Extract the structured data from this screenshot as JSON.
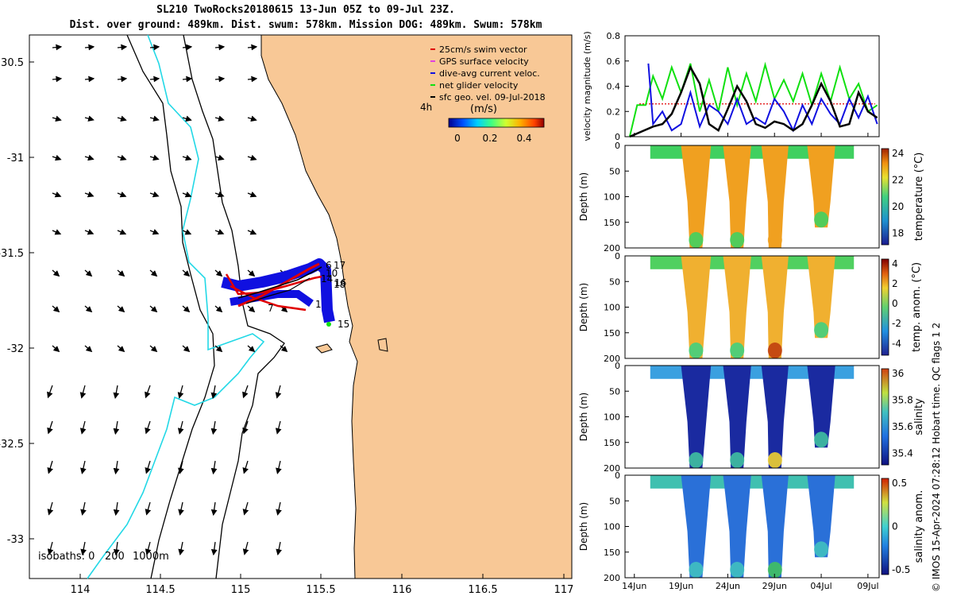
{
  "title_line1": "SL210 TwoRocks20180615 13-Jun 05Z to 09-Jul 23Z.",
  "title_line2": "Dist. over ground: 489km. Dist. swum: 578km. Mission DOG: 489km. Swum: 578km",
  "colors": {
    "land": "#f8c896",
    "ocean": "#ffffff",
    "isobath_200": "#000000",
    "isobath_1000": "#000000",
    "coast_cyan": "#22d8e6",
    "swim": "#e00000",
    "gps": "#e040e0",
    "dive": "#1010e0",
    "net": "#10e010",
    "geo": "#000000"
  },
  "map": {
    "lon_ticks": [
      "114",
      "114.5",
      "115",
      "115.5",
      "116",
      "116.5",
      "117"
    ],
    "lat_ticks": [
      "30.5",
      "-31",
      "-31.5",
      "-32",
      "-32.5",
      "-33"
    ],
    "legend": [
      {
        "label": "25cm/s swim vector",
        "color": "#e00000"
      },
      {
        "label": "GPS surface velocity",
        "color": "#e040e0"
      },
      {
        "label": "dive-avg current veloc.",
        "color": "#1010e0"
      },
      {
        "label": "net glider velocity",
        "color": "#10e010"
      },
      {
        "label": "sfc geo. vel. 09-Jul-2018",
        "color": "#000000"
      }
    ],
    "legend_prefix": "4h",
    "colorbar_unit": "(m/s)",
    "colorbar_ticks": [
      "0",
      "0.2",
      "0.4"
    ],
    "isobaths_label": "isobaths: 0",
    "isobaths_200": "200",
    "isobaths_1000": "1000m",
    "track_labels": [
      "6",
      "17",
      "10",
      "14",
      "18",
      "16",
      "7",
      "1",
      "15"
    ]
  },
  "chart_data": [
    {
      "type": "line",
      "ylabel": "velocity magnitude (m/s)",
      "ylim": [
        0,
        0.8
      ],
      "yticks": [
        "0",
        "0.2",
        "0.4",
        "0.6",
        "0.8"
      ],
      "series": [
        {
          "color": "#10e010",
          "values": [
            [
              13.5,
              0
            ],
            [
              14.3,
              0.25
            ],
            [
              15.2,
              0.25
            ],
            [
              16,
              0.48
            ],
            [
              17,
              0.3
            ],
            [
              18,
              0.55
            ],
            [
              19,
              0.35
            ],
            [
              20,
              0.58
            ],
            [
              21,
              0.2
            ],
            [
              22,
              0.45
            ],
            [
              23,
              0.2
            ],
            [
              24,
              0.55
            ],
            [
              25,
              0.25
            ],
            [
              26,
              0.5
            ],
            [
              27,
              0.28
            ],
            [
              28,
              0.57
            ],
            [
              29,
              0.3
            ],
            [
              30,
              0.45
            ],
            [
              31,
              0.28
            ],
            [
              32,
              0.5
            ],
            [
              33,
              0.25
            ],
            [
              34,
              0.5
            ],
            [
              35,
              0.28
            ],
            [
              36,
              0.55
            ],
            [
              37,
              0.3
            ],
            [
              38,
              0.42
            ],
            [
              39,
              0.2
            ],
            [
              40,
              0.25
            ]
          ]
        },
        {
          "color": "#1010e0",
          "values": [
            [
              15.5,
              0.58
            ],
            [
              16,
              0.1
            ],
            [
              17,
              0.2
            ],
            [
              18,
              0.05
            ],
            [
              19,
              0.1
            ],
            [
              20,
              0.35
            ],
            [
              21,
              0.08
            ],
            [
              22,
              0.25
            ],
            [
              23,
              0.2
            ],
            [
              24,
              0.1
            ],
            [
              25,
              0.3
            ],
            [
              26,
              0.1
            ],
            [
              27,
              0.15
            ],
            [
              28,
              0.1
            ],
            [
              29,
              0.3
            ],
            [
              30,
              0.2
            ],
            [
              31,
              0.05
            ],
            [
              32,
              0.25
            ],
            [
              33,
              0.1
            ],
            [
              34,
              0.3
            ],
            [
              35,
              0.18
            ],
            [
              36,
              0.1
            ],
            [
              37,
              0.3
            ],
            [
              38,
              0.15
            ],
            [
              39,
              0.32
            ],
            [
              40,
              0.1
            ]
          ]
        },
        {
          "color": "#000000",
          "values": [
            [
              13.5,
              0.0
            ],
            [
              16,
              0.08
            ],
            [
              17,
              0.1
            ],
            [
              18,
              0.18
            ],
            [
              19,
              0.35
            ],
            [
              20,
              0.55
            ],
            [
              21,
              0.42
            ],
            [
              22,
              0.1
            ],
            [
              23,
              0.05
            ],
            [
              24,
              0.22
            ],
            [
              25,
              0.4
            ],
            [
              26,
              0.28
            ],
            [
              27,
              0.1
            ],
            [
              28,
              0.07
            ],
            [
              29,
              0.12
            ],
            [
              30,
              0.1
            ],
            [
              31,
              0.05
            ],
            [
              32,
              0.1
            ],
            [
              33,
              0.25
            ],
            [
              34,
              0.42
            ],
            [
              35,
              0.28
            ],
            [
              36,
              0.08
            ],
            [
              37,
              0.1
            ],
            [
              38,
              0.35
            ],
            [
              39,
              0.2
            ],
            [
              40,
              0.15
            ]
          ]
        }
      ]
    },
    {
      "type": "heatmap",
      "ylabel": "Depth (m)",
      "yticks": [
        "0",
        "50",
        "100",
        "150",
        "200"
      ],
      "cbar_label": "temperature (°C)",
      "cbar_ticks": [
        "24",
        "22",
        "20",
        "18"
      ]
    },
    {
      "type": "heatmap",
      "ylabel": "Depth (m)",
      "yticks": [
        "0",
        "50",
        "100",
        "150",
        "200"
      ],
      "cbar_label": "temp. anom. (°C)",
      "cbar_ticks": [
        "4",
        "2",
        "0",
        "-2",
        "-4"
      ]
    },
    {
      "type": "heatmap",
      "ylabel": "Depth (m)",
      "yticks": [
        "0",
        "50",
        "100",
        "150",
        "200"
      ],
      "cbar_label": "salinity",
      "cbar_ticks": [
        "36",
        "35.8",
        "35.6",
        "35.4"
      ]
    },
    {
      "type": "heatmap",
      "ylabel": "Depth (m)",
      "yticks": [
        "0",
        "50",
        "100",
        "150",
        "200"
      ],
      "cbar_label": "salinity anom.",
      "cbar_ticks": [
        "0.5",
        "0",
        "-0.5"
      ],
      "xticks": [
        "14Jun",
        "19Jun",
        "24Jun",
        "29Jun",
        "04Jul",
        "09Jul"
      ]
    }
  ],
  "side_note": "© IMOS 15-Apr-2024 07:28:12 Hobart time. QC flags 1  2"
}
